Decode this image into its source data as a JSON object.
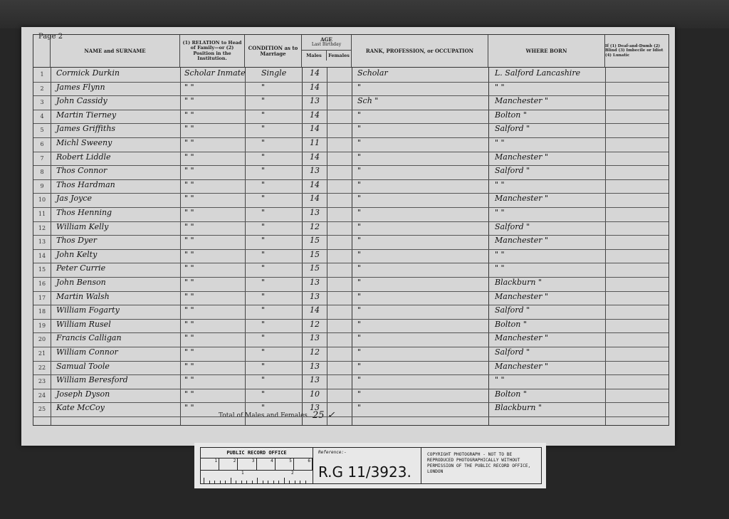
{
  "page_label": "Page 2",
  "headers": {
    "name": "NAME and SURNAME",
    "relation": "(1) RELATION to Head of Family—or (2) Position in the Institution.",
    "condition": "CONDITION as to Marriage",
    "age": "AGE",
    "age_sub": "Last Birthday",
    "males": "Males",
    "females": "Females",
    "occupation": "RANK, PROFESSION, or OCCUPATION",
    "where_born": "WHERE BORN",
    "infirmity": "If (1) Deaf-and-Dumb (2) Blind (3) Imbecile or Idiot (4) Lunatic"
  },
  "rows": [
    {
      "n": "1",
      "name": "Cormick Durkin",
      "relation": "Scholar Inmate",
      "condition": "Single",
      "age": "14",
      "occupation": "Scholar",
      "born": "L. Salford Lancashire"
    },
    {
      "n": "2",
      "name": "James Flynn",
      "relation": "\"   \"",
      "condition": "\"",
      "age": "14",
      "occupation": "\"",
      "born": "\"   \""
    },
    {
      "n": "3",
      "name": "John Cassidy",
      "relation": "\"   \"",
      "condition": "\"",
      "age": "13",
      "occupation": "Sch   \"",
      "born": "Manchester \""
    },
    {
      "n": "4",
      "name": "Martin Tierney",
      "relation": "\"   \"",
      "condition": "\"",
      "age": "14",
      "occupation": "\"",
      "born": "Bolton \""
    },
    {
      "n": "5",
      "name": "James Griffiths",
      "relation": "\"   \"",
      "condition": "\"",
      "age": "14",
      "occupation": "\"",
      "born": "Salford \""
    },
    {
      "n": "6",
      "name": "Michl Sweeny",
      "relation": "\"   \"",
      "condition": "\"",
      "age": "11",
      "occupation": "\"",
      "born": "\"   \""
    },
    {
      "n": "7",
      "name": "Robert Liddle",
      "relation": "\"   \"",
      "condition": "\"",
      "age": "14",
      "occupation": "\"",
      "born": "Manchester \""
    },
    {
      "n": "8",
      "name": "Thos Connor",
      "relation": "\"   \"",
      "condition": "\"",
      "age": "13",
      "occupation": "\"",
      "born": "Salford \""
    },
    {
      "n": "9",
      "name": "Thos Hardman",
      "relation": "\"   \"",
      "condition": "\"",
      "age": "14",
      "occupation": "\"",
      "born": "\"   \""
    },
    {
      "n": "10",
      "name": "Jas Joyce",
      "relation": "\"   \"",
      "condition": "\"",
      "age": "14",
      "occupation": "\"",
      "born": "Manchester \""
    },
    {
      "n": "11",
      "name": "Thos Henning",
      "relation": "\"   \"",
      "condition": "\"",
      "age": "13",
      "occupation": "\"",
      "born": "\"   \""
    },
    {
      "n": "12",
      "name": "William Kelly",
      "relation": "\"   \"",
      "condition": "\"",
      "age": "12",
      "occupation": "\"",
      "born": "Salford \""
    },
    {
      "n": "13",
      "name": "Thos Dyer",
      "relation": "\"   \"",
      "condition": "\"",
      "age": "15",
      "occupation": "\"",
      "born": "Manchester \""
    },
    {
      "n": "14",
      "name": "John Kelty",
      "relation": "\"   \"",
      "condition": "\"",
      "age": "15",
      "occupation": "\"",
      "born": "\"   \""
    },
    {
      "n": "15",
      "name": "Peter Currie",
      "relation": "\"   \"",
      "condition": "\"",
      "age": "15",
      "occupation": "\"",
      "born": "\"   \""
    },
    {
      "n": "16",
      "name": "John Benson",
      "relation": "\"   \"",
      "condition": "\"",
      "age": "13",
      "occupation": "\"",
      "born": "Blackburn \""
    },
    {
      "n": "17",
      "name": "Martin Walsh",
      "relation": "\"   \"",
      "condition": "\"",
      "age": "13",
      "occupation": "\"",
      "born": "Manchester \""
    },
    {
      "n": "18",
      "name": "William Fogarty",
      "relation": "\"   \"",
      "condition": "\"",
      "age": "14",
      "occupation": "\"",
      "born": "Salford \""
    },
    {
      "n": "19",
      "name": "William Rusel",
      "relation": "\"   \"",
      "condition": "\"",
      "age": "12",
      "occupation": "\"",
      "born": "Bolton \""
    },
    {
      "n": "20",
      "name": "Francis Calligan",
      "relation": "\"   \"",
      "condition": "\"",
      "age": "13",
      "occupation": "\"",
      "born": "Manchester \""
    },
    {
      "n": "21",
      "name": "William Connor",
      "relation": "\"   \"",
      "condition": "\"",
      "age": "12",
      "occupation": "\"",
      "born": "Salford \""
    },
    {
      "n": "22",
      "name": "Samual Toole",
      "relation": "\"   \"",
      "condition": "\"",
      "age": "13",
      "occupation": "\"",
      "born": "Manchester \""
    },
    {
      "n": "23",
      "name": "William Beresford",
      "relation": "\"   \"",
      "condition": "\"",
      "age": "13",
      "occupation": "\"",
      "born": "\"   \""
    },
    {
      "n": "24",
      "name": "Joseph Dyson",
      "relation": "\"   \"",
      "condition": "\"",
      "age": "10",
      "occupation": "\"",
      "born": "Bolton \""
    },
    {
      "n": "25",
      "name": "Kate McCoy",
      "relation": "\"   \"",
      "condition": "\"",
      "age": "13",
      "occupation": "\"",
      "born": "Blackburn \""
    }
  ],
  "total_label": "Total of Males and Females...",
  "total_value": "25 ✓",
  "archive_label": {
    "office": "PUBLIC RECORD OFFICE",
    "scale": [
      "1",
      "2",
      "3",
      "4",
      "5",
      "6"
    ],
    "ruler": [
      "1",
      "2"
    ],
    "reference_label": "Reference:-",
    "reference": "R.G 11/3923.",
    "copyright": "COPYRIGHT PHOTOGRAPH - NOT TO BE REPRODUCED PHOTOGRAPHICALLY WITHOUT PERMISSION OF THE PUBLIC RECORD OFFICE, LONDON"
  }
}
